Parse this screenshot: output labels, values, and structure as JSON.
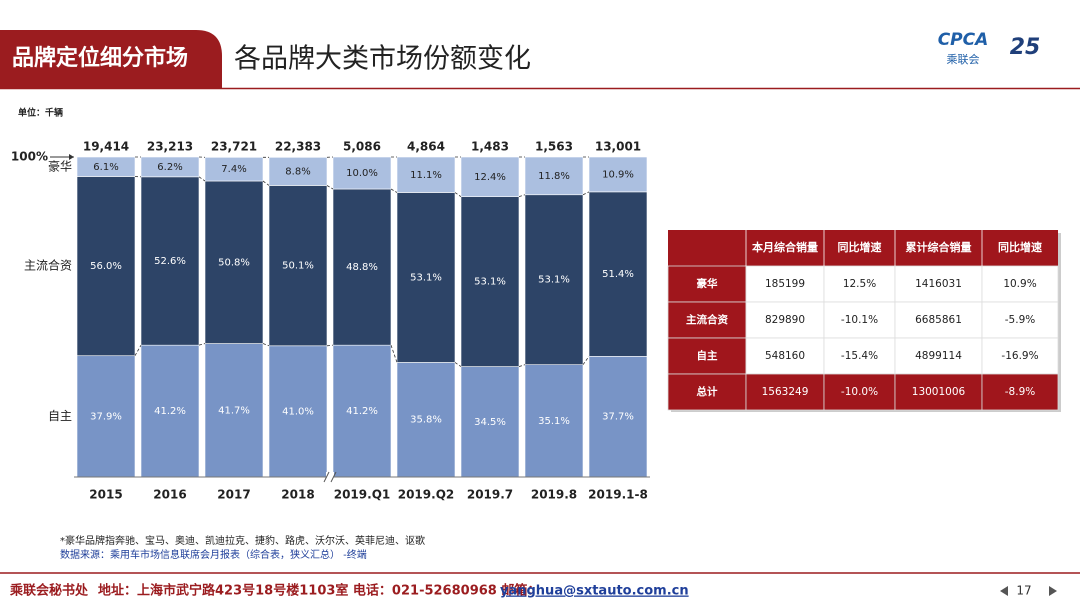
{
  "header": {
    "title": "品牌定位细分市场",
    "subtitle": "各品牌大类市场份额变化",
    "logo": {
      "brand": "CPCA",
      "name": "乘联会",
      "anniversary": "25"
    }
  },
  "unit": "单位：千辆",
  "chart_data": {
    "type": "stacked_bar",
    "categories": [
      "2015",
      "2016",
      "2017",
      "2018",
      "2019.Q1",
      "2019.Q2",
      "2019.7",
      "2019.8",
      "2019.1-8"
    ],
    "totals": {
      "values": [
        19414,
        23213,
        23721,
        22383,
        5086,
        4864,
        1483,
        1563,
        13001
      ],
      "value_labels": [
        "19,414",
        "23,213",
        "23,721",
        "22,383",
        "5,086",
        "4,864",
        "1,483",
        "1,563",
        "13,001"
      ]
    },
    "series": [
      {
        "name": "自主",
        "color": "#7894c6",
        "values": [
          37.9,
          41.2,
          41.7,
          41.0,
          41.2,
          35.8,
          34.5,
          35.1,
          37.7
        ],
        "value_labels": [
          "37.9%",
          "41.2%",
          "41.7%",
          "41.0%",
          "41.2%",
          "35.8%",
          "34.5%",
          "35.1%",
          "37.7%"
        ]
      },
      {
        "name": "主流合资",
        "color": "#2d4467",
        "values": [
          56.0,
          52.6,
          50.8,
          50.1,
          48.8,
          53.1,
          53.1,
          53.1,
          51.4
        ],
        "value_labels": [
          "56.0%",
          "52.6%",
          "50.8%",
          "50.1%",
          "48.8%",
          "53.1%",
          "53.1%",
          "53.1%",
          "51.4%"
        ]
      },
      {
        "name": "豪华",
        "color": "#abbfe0",
        "values": [
          6.1,
          6.2,
          7.4,
          8.8,
          10.0,
          11.1,
          12.4,
          11.8,
          10.9
        ],
        "value_labels": [
          "6.1%",
          "6.2%",
          "7.4%",
          "8.8%",
          "10.0%",
          "11.1%",
          "12.4%",
          "11.8%",
          "10.9%"
        ]
      }
    ],
    "ylim": [
      0,
      100
    ],
    "yticks": [
      {
        "value": 100,
        "label": "100%"
      }
    ]
  },
  "notes": [
    "*豪华品牌指奔驰、宝马、奥迪、凯迪拉克、捷豹、路虎、沃尔沃、英菲尼迪、讴歌",
    "数据来源：乘用车市场信息联席会月报表（综合表，狭义汇总）  -终端"
  ],
  "table": {
    "header": [
      "本月综合销量",
      "同比增速",
      "累计综合销量",
      "同比增速"
    ],
    "rows": [
      [
        "豪华",
        "185199",
        "12.5%",
        "1416031",
        "10.9%"
      ],
      [
        "主流合资",
        "829890",
        "-10.1%",
        "6685861",
        "-5.9%"
      ],
      [
        "自主",
        "548160",
        "-15.4%",
        "4899114",
        "-16.9%"
      ],
      [
        "总计",
        "1563249",
        "-10.0%",
        "13001006",
        "-8.9%"
      ]
    ]
  },
  "footer": {
    "org": "乘联会秘书处",
    "contact": "地址：上海市武宁路423号18号楼1103室  电话：021-52680968  邮箱：",
    "email": "yanghua@sxtauto.com.cn",
    "page": "17"
  }
}
